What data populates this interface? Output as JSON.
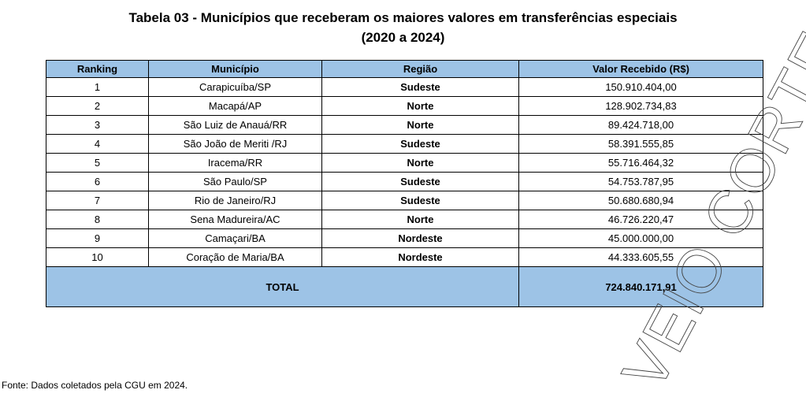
{
  "title": [
    "Tabela 03 - Municípios que receberam os maiores valores em transferências especiais",
    "(2020 a 2024)"
  ],
  "table": {
    "headers": [
      "Ranking",
      "Município",
      "Região",
      "Valor Recebido (R$)"
    ],
    "rows": [
      [
        "1",
        "Carapicuíba/SP",
        "Sudeste",
        "150.910.404,00"
      ],
      [
        "2",
        "Macapá/AP",
        "Norte",
        "128.902.734,83"
      ],
      [
        "3",
        "São Luiz de Anauá/RR",
        "Norte",
        "89.424.718,00"
      ],
      [
        "4",
        "São João de Meriti /RJ",
        "Sudeste",
        "58.391.555,85"
      ],
      [
        "5",
        "Iracema/RR",
        "Norte",
        "55.716.464,32"
      ],
      [
        "6",
        "São Paulo/SP",
        "Sudeste",
        "54.753.787,95"
      ],
      [
        "7",
        "Rio de Janeiro/RJ",
        "Sudeste",
        "50.680.680,94"
      ],
      [
        "8",
        "Sena Madureira/AC",
        "Norte",
        "46.726.220,47"
      ],
      [
        "9",
        "Camaçari/BA",
        "Nordeste",
        "45.000.000,00"
      ],
      [
        "10",
        "Coração de Maria/BA",
        "Nordeste",
        "44.333.605,55"
      ]
    ],
    "total": [
      "TOTAL",
      "724.840.171,91"
    ]
  },
  "source": "Fonte: Dados coletados pela CGU em 2024.",
  "watermark": "VEIO CORTES"
}
